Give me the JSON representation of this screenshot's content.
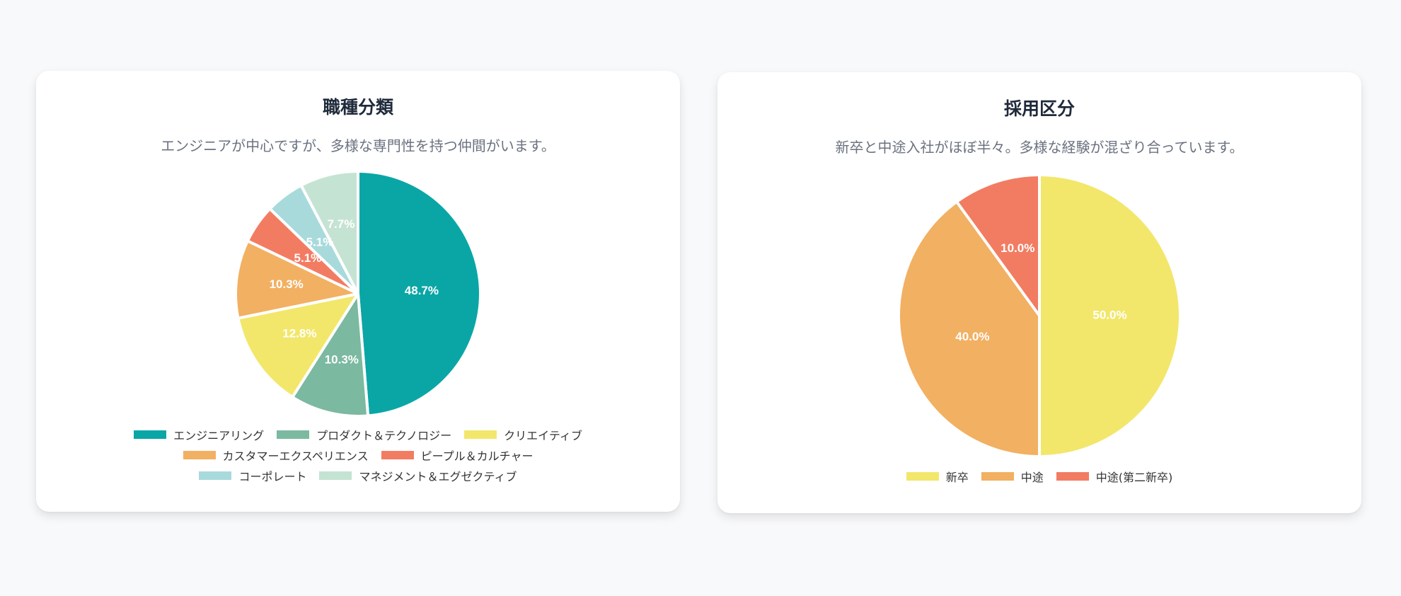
{
  "chart_data": [
    {
      "type": "pie",
      "title": "職種分類",
      "subtitle": "エンジニアが中心ですが、多様な専門性を持つ仲間がいます。",
      "categories": [
        "エンジニアリング",
        "プロダクト＆テクノロジー",
        "クリエイティブ",
        "カスタマーエクスペリエンス",
        "ピープル＆カルチャー",
        "コーポレート",
        "マネジメント＆エグゼクティブ"
      ],
      "values": [
        48.7,
        10.3,
        12.8,
        10.3,
        5.1,
        5.1,
        7.7
      ],
      "labels": [
        "48.7%",
        "10.3%",
        "12.8%",
        "10.3%",
        "5.1%",
        "5.1%",
        "7.7%"
      ],
      "colors": [
        "#0aa6a6",
        "#7bb9a0",
        "#f2e76b",
        "#f2b062",
        "#f27c62",
        "#a8dadc",
        "#c5e3d3"
      ],
      "legend_position": "bottom"
    },
    {
      "type": "pie",
      "title": "採用区分",
      "subtitle": "新卒と中途入社がほぼ半々。多様な経験が混ざり合っています。",
      "categories": [
        "新卒",
        "中途",
        "中途(第二新卒)"
      ],
      "values": [
        50.0,
        40.0,
        10.0
      ],
      "labels": [
        "50.0%",
        "40.0%",
        "10.0%"
      ],
      "colors": [
        "#f2e76b",
        "#f2b062",
        "#f27c62"
      ],
      "legend_position": "bottom"
    }
  ]
}
